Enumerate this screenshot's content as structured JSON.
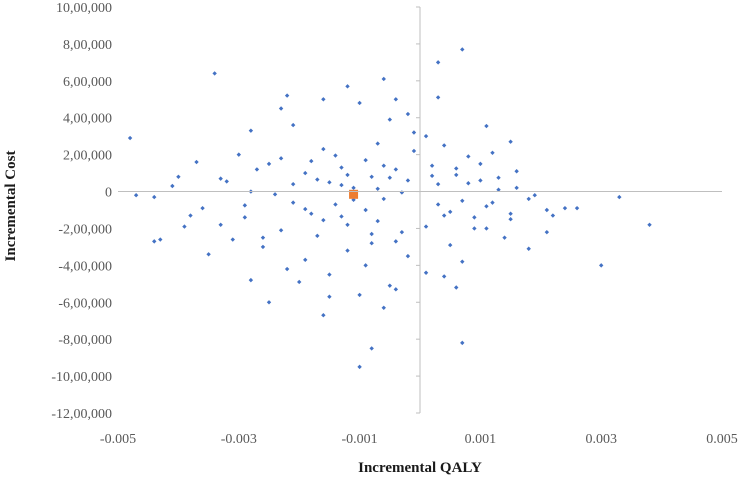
{
  "chart_data": {
    "type": "scatter",
    "title": "",
    "xlabel": "Incremental QALY",
    "ylabel": "Incremental Cost",
    "xlim": [
      -0.005,
      0.005
    ],
    "ylim": [
      -1200000,
      1000000
    ],
    "x_ticks": [
      -0.005,
      -0.003,
      -0.001,
      0.001,
      0.003,
      0.005
    ],
    "x_tick_labels": [
      "-0.005",
      "-0.003",
      "-0.001",
      "0.001",
      "0.003",
      "0.005"
    ],
    "y_ticks": [
      1000000,
      800000,
      600000,
      400000,
      200000,
      0,
      -200000,
      -400000,
      -600000,
      -800000,
      -1000000,
      -1200000
    ],
    "y_tick_labels": [
      "10,00,000",
      "8,00,000",
      "6,00,000",
      "4,00,000",
      "2,00,000",
      "0",
      "-2,00,000",
      "-4,00,000",
      "-6,00,000",
      "-8,00,000",
      "-10,00,000",
      "-12,00,000"
    ],
    "grid": false,
    "legend": "none",
    "series": [
      {
        "color": "#4472C4",
        "marker": "diamond",
        "points": [
          [
            0.0007,
            770000
          ],
          [
            0.0003,
            700000
          ],
          [
            -0.0034,
            640000
          ],
          [
            -0.0006,
            610000
          ],
          [
            -0.0012,
            570000
          ],
          [
            -0.0022,
            520000
          ],
          [
            0.0003,
            510000
          ],
          [
            -0.0016,
            500000
          ],
          [
            -0.0004,
            500000
          ],
          [
            -0.001,
            480000
          ],
          [
            -0.0023,
            450000
          ],
          [
            -0.0002,
            420000
          ],
          [
            -0.0005,
            390000
          ],
          [
            -0.0021,
            360000
          ],
          [
            0.0011,
            355000
          ],
          [
            -0.0028,
            330000
          ],
          [
            -0.0001,
            320000
          ],
          [
            0.0001,
            300000
          ],
          [
            -0.0048,
            290000
          ],
          [
            0.0015,
            270000
          ],
          [
            -0.0007,
            260000
          ],
          [
            0.0004,
            250000
          ],
          [
            -0.0016,
            230000
          ],
          [
            -0.0001,
            220000
          ],
          [
            0.0012,
            210000
          ],
          [
            -0.003,
            200000
          ],
          [
            0.0008,
            190000
          ],
          [
            -0.0037,
            160000
          ],
          [
            -0.0025,
            150000
          ],
          [
            0.0002,
            140000
          ],
          [
            -0.0013,
            130000
          ],
          [
            -0.0004,
            120000
          ],
          [
            0.0016,
            110000
          ],
          [
            -0.0019,
            100000
          ],
          [
            0.0006,
            90000
          ],
          [
            -0.0008,
            80000
          ],
          [
            -0.0033,
            70000
          ],
          [
            0.001,
            60000
          ],
          [
            -0.0015,
            50000
          ],
          [
            0.0003,
            40000
          ],
          [
            -0.0041,
            30000
          ],
          [
            -0.0011,
            20000
          ],
          [
            0.0013,
            10000
          ],
          [
            -0.0028,
            0
          ],
          [
            0.0019,
            -20000
          ],
          [
            -0.0044,
            -30000
          ],
          [
            -0.0006,
            -40000
          ],
          [
            0.0007,
            -50000
          ],
          [
            -0.0021,
            -60000
          ],
          [
            -0.0014,
            -70000
          ],
          [
            0.0011,
            -80000
          ],
          [
            -0.0036,
            -90000
          ],
          [
            -0.0009,
            -100000
          ],
          [
            0.0024,
            -90000
          ],
          [
            -0.0018,
            -120000
          ],
          [
            0.0004,
            -130000
          ],
          [
            -0.0029,
            -140000
          ],
          [
            0.0015,
            -150000
          ],
          [
            -0.0007,
            -160000
          ],
          [
            -0.0012,
            -180000
          ],
          [
            0.0021,
            -100000
          ],
          [
            -0.0039,
            -190000
          ],
          [
            0.0009,
            -200000
          ],
          [
            -0.0023,
            -210000
          ],
          [
            -0.0003,
            -220000
          ],
          [
            -0.0017,
            -240000
          ],
          [
            0.0014,
            -250000
          ],
          [
            -0.0031,
            -260000
          ],
          [
            -0.0044,
            -270000
          ],
          [
            -0.0008,
            -280000
          ],
          [
            0.0005,
            -290000
          ],
          [
            -0.0026,
            -300000
          ],
          [
            0.0018,
            -310000
          ],
          [
            -0.0012,
            -320000
          ],
          [
            -0.0035,
            -340000
          ],
          [
            -0.0002,
            -350000
          ],
          [
            -0.0019,
            -370000
          ],
          [
            0.0007,
            -380000
          ],
          [
            -0.0009,
            -400000
          ],
          [
            -0.0022,
            -420000
          ],
          [
            0.0001,
            -440000
          ],
          [
            -0.0015,
            -450000
          ],
          [
            0.0004,
            -460000
          ],
          [
            -0.0028,
            -480000
          ],
          [
            -0.002,
            -490000
          ],
          [
            -0.0005,
            -510000
          ],
          [
            0.0006,
            -520000
          ],
          [
            -0.0004,
            -530000
          ],
          [
            -0.0015,
            -570000
          ],
          [
            -0.001,
            -560000
          ],
          [
            -0.0025,
            -600000
          ],
          [
            -0.0006,
            -630000
          ],
          [
            -0.0016,
            -670000
          ],
          [
            0.0007,
            -820000
          ],
          [
            -0.0008,
            -850000
          ],
          [
            -0.001,
            -950000
          ],
          [
            0.0022,
            -130000
          ],
          [
            0.0033,
            -30000
          ],
          [
            0.0038,
            -180000
          ],
          [
            0.003,
            -400000
          ],
          [
            0.0026,
            -90000
          ],
          [
            0.0018,
            -40000
          ],
          [
            0.0021,
            -220000
          ],
          [
            -0.0047,
            -20000
          ],
          [
            -0.0043,
            -260000
          ],
          [
            0.0002,
            85000
          ],
          [
            -0.0013,
            35000
          ],
          [
            -0.0007,
            15000
          ],
          [
            0.0008,
            45000
          ],
          [
            -0.0024,
            -15000
          ],
          [
            -0.0032,
            55000
          ],
          [
            0.0012,
            -60000
          ],
          [
            -0.0003,
            -5000
          ],
          [
            -0.0017,
            65000
          ],
          [
            0.0005,
            -110000
          ],
          [
            -0.0027,
            120000
          ],
          [
            -0.0009,
            170000
          ],
          [
            0.001,
            150000
          ],
          [
            -0.0019,
            -95000
          ],
          [
            -0.0038,
            -130000
          ],
          [
            0.0016,
            20000
          ],
          [
            -0.0005,
            75000
          ],
          [
            -0.0014,
            195000
          ],
          [
            -0.0021,
            40000
          ],
          [
            0.0003,
            -70000
          ],
          [
            -0.0011,
            -45000
          ],
          [
            -0.0029,
            -75000
          ],
          [
            0.0009,
            -140000
          ],
          [
            -0.0006,
            140000
          ],
          [
            -0.0016,
            -155000
          ],
          [
            0.0013,
            75000
          ],
          [
            -0.0002,
            60000
          ],
          [
            -0.0023,
            180000
          ],
          [
            -0.0033,
            -180000
          ],
          [
            0.0001,
            -190000
          ],
          [
            -0.0012,
            90000
          ],
          [
            -0.004,
            80000
          ],
          [
            0.0006,
            125000
          ],
          [
            -0.0018,
            165000
          ],
          [
            -0.0008,
            -230000
          ],
          [
            0.0011,
            -200000
          ],
          [
            -0.0026,
            -250000
          ],
          [
            -0.0004,
            -270000
          ],
          [
            0.0015,
            -120000
          ],
          [
            -0.0013,
            -135000
          ]
        ]
      },
      {
        "color": "#ED7D31",
        "marker": "square",
        "points": [
          [
            -0.0011,
            -15000
          ]
        ]
      }
    ]
  }
}
